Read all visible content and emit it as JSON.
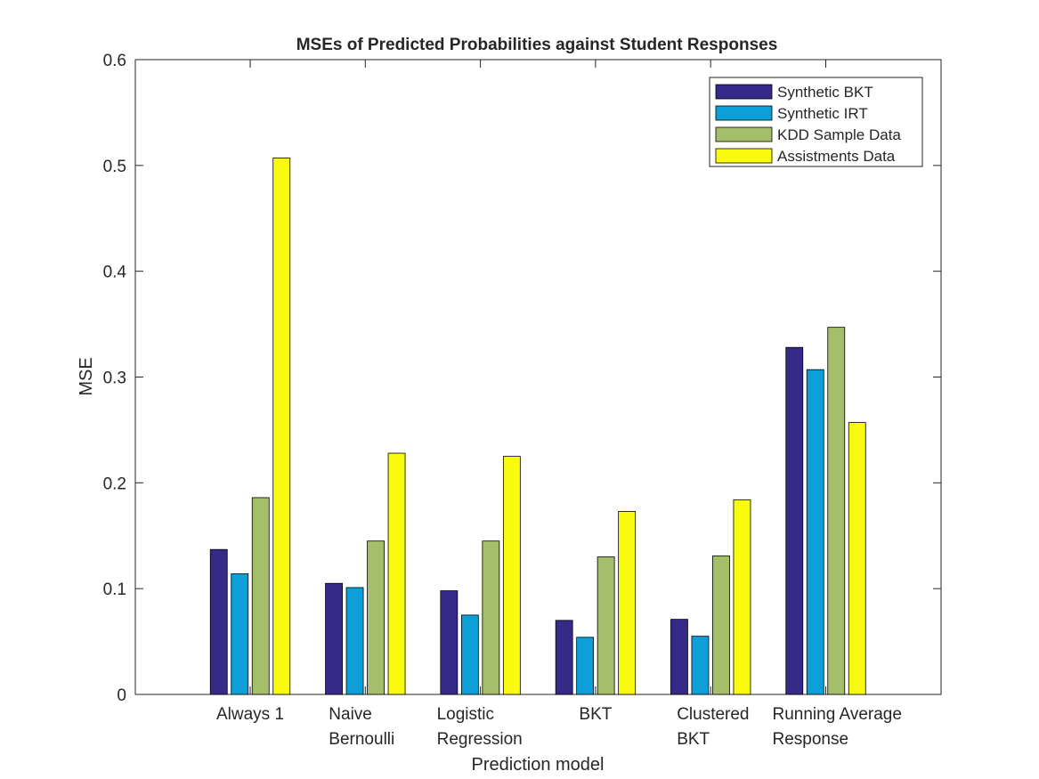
{
  "chart_data": {
    "type": "bar",
    "title": "MSEs of Predicted Probabilities against Student Responses",
    "xlabel": "Prediction model",
    "ylabel": "MSE",
    "ylim": [
      0,
      0.6
    ],
    "yticks": [
      "0",
      "0.1",
      "0.2",
      "0.3",
      "0.4",
      "0.5",
      "0.6"
    ],
    "grid": false,
    "legend_position": "top-right",
    "categories": [
      [
        "Always 1"
      ],
      [
        "Naive",
        "Bernoulli"
      ],
      [
        "Logistic",
        "Regression"
      ],
      [
        "BKT"
      ],
      [
        "Clustered",
        "BKT"
      ],
      [
        "Running Average",
        "Response"
      ]
    ],
    "series": [
      {
        "name": "Synthetic BKT",
        "color": "#352a87",
        "values": [
          0.137,
          0.105,
          0.098,
          0.07,
          0.071,
          0.328
        ]
      },
      {
        "name": "Synthetic IRT",
        "color": "#0d9fd8",
        "values": [
          0.114,
          0.101,
          0.075,
          0.054,
          0.055,
          0.307
        ]
      },
      {
        "name": "KDD Sample Data",
        "color": "#a5be6a",
        "values": [
          0.186,
          0.145,
          0.145,
          0.13,
          0.131,
          0.347
        ]
      },
      {
        "name": "Assistments Data",
        "color": "#f9fb0e",
        "values": [
          0.507,
          0.228,
          0.225,
          0.173,
          0.184,
          0.257
        ]
      }
    ]
  }
}
